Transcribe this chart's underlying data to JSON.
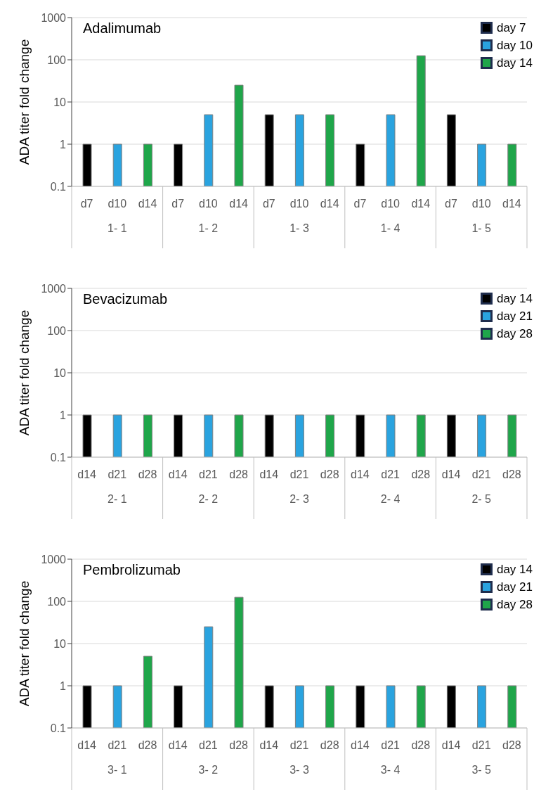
{
  "chart_data": [
    {
      "type": "bar",
      "title": "Adalimumab",
      "ylabel": "ADA titer fold change",
      "categories": [
        "d7",
        "d10",
        "d14",
        "d7",
        "d10",
        "d14",
        "d7",
        "d10",
        "d14",
        "d7",
        "d10",
        "d14",
        "d7",
        "d10",
        "d14"
      ],
      "series": [
        {
          "name": "day 7",
          "color": "#000000",
          "values": [
            1,
            null,
            null,
            1,
            null,
            null,
            5,
            null,
            null,
            1,
            null,
            null,
            5,
            null,
            null
          ]
        },
        {
          "name": "day 10",
          "color": "#2aa3df",
          "values": [
            null,
            1,
            null,
            null,
            5,
            null,
            null,
            5,
            null,
            null,
            5,
            null,
            null,
            1,
            null
          ]
        },
        {
          "name": "day 14",
          "color": "#1fa64a",
          "values": [
            null,
            null,
            1,
            null,
            null,
            25,
            null,
            null,
            5,
            null,
            null,
            125,
            null,
            null,
            1
          ]
        }
      ],
      "stacked": true,
      "log": true,
      "ylim": [
        0.1,
        1000
      ],
      "yticks": [
        0.1,
        1,
        10,
        100,
        1000
      ],
      "grid": "y",
      "legend": "top right",
      "annotations": [
        "1- 1",
        "1- 2",
        "1- 3",
        "1- 4",
        "1- 5"
      ]
    },
    {
      "type": "bar",
      "title": "Bevacizumab",
      "ylabel": "ADA titer fold change",
      "categories": [
        "d14",
        "d21",
        "d28",
        "d14",
        "d21",
        "d28",
        "d14",
        "d21",
        "d28",
        "d14",
        "d21",
        "d28",
        "d14",
        "d21",
        "d28"
      ],
      "series": [
        {
          "name": "day 14",
          "color": "#000000",
          "values": [
            1,
            null,
            null,
            1,
            null,
            null,
            1,
            null,
            null,
            1,
            null,
            null,
            1,
            null,
            null
          ]
        },
        {
          "name": "day 21",
          "color": "#2aa3df",
          "values": [
            null,
            1,
            null,
            null,
            1,
            null,
            null,
            1,
            null,
            null,
            1,
            null,
            null,
            1,
            null
          ]
        },
        {
          "name": "day 28",
          "color": "#1fa64a",
          "values": [
            null,
            null,
            1,
            null,
            null,
            1,
            null,
            null,
            1,
            null,
            null,
            1,
            null,
            null,
            1
          ]
        }
      ],
      "stacked": true,
      "log": true,
      "ylim": [
        0.1,
        1000
      ],
      "yticks": [
        0.1,
        1,
        10,
        100,
        1000
      ],
      "grid": "y",
      "legend": "top right",
      "annotations": [
        "2- 1",
        "2- 2",
        "2- 3",
        "2- 4",
        "2- 5"
      ]
    },
    {
      "type": "bar",
      "title": "Pembrolizumab",
      "ylabel": "ADA titer fold change",
      "categories": [
        "d14",
        "d21",
        "d28",
        "d14",
        "d21",
        "d28",
        "d14",
        "d21",
        "d28",
        "d14",
        "d21",
        "d28",
        "d14",
        "d21",
        "d28"
      ],
      "series": [
        {
          "name": "day 14",
          "color": "#000000",
          "values": [
            1,
            null,
            null,
            1,
            null,
            null,
            1,
            null,
            null,
            1,
            null,
            null,
            1,
            null,
            null
          ]
        },
        {
          "name": "day 21",
          "color": "#2aa3df",
          "values": [
            null,
            1,
            null,
            null,
            25,
            null,
            null,
            1,
            null,
            null,
            1,
            null,
            null,
            1,
            null
          ]
        },
        {
          "name": "day 28",
          "color": "#1fa64a",
          "values": [
            null,
            null,
            5,
            null,
            null,
            125,
            null,
            null,
            1,
            null,
            null,
            1,
            null,
            null,
            1
          ]
        }
      ],
      "stacked": true,
      "log": true,
      "ylim": [
        0.1,
        1000
      ],
      "yticks": [
        0.1,
        1,
        10,
        100,
        1000
      ],
      "grid": "y",
      "legend": "top right",
      "annotations": [
        "3- 1",
        "3- 2",
        "3- 3",
        "3- 4",
        "3- 5"
      ]
    }
  ]
}
